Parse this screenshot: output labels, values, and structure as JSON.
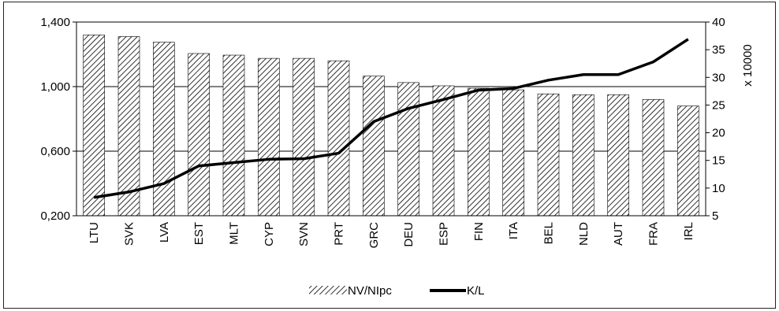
{
  "chart_data": {
    "type": "bar",
    "categories": [
      "LTU",
      "SVK",
      "LVA",
      "EST",
      "MLT",
      "CYP",
      "SVN",
      "PRT",
      "GRC",
      "DEU",
      "ESP",
      "FIN",
      "ITA",
      "BEL",
      "NLD",
      "AUT",
      "FRA",
      "IRL"
    ],
    "series": [
      {
        "name": "NV/NIpc",
        "type": "bar",
        "axis": "left",
        "pattern": "diagonal-hatch",
        "values": [
          1.32,
          1.31,
          1.275,
          1.205,
          1.195,
          1.175,
          1.175,
          1.16,
          1.065,
          1.025,
          1.005,
          0.99,
          0.98,
          0.955,
          0.95,
          0.95,
          0.92,
          0.88
        ]
      },
      {
        "name": "K/L",
        "type": "line",
        "axis": "right",
        "color": "#000000",
        "values": [
          8.3,
          9.3,
          10.8,
          14.0,
          14.6,
          15.2,
          15.3,
          16.3,
          22.0,
          24.4,
          26.0,
          27.7,
          28.0,
          29.5,
          30.5,
          30.5,
          32.8,
          36.9
        ]
      }
    ],
    "left_axis": {
      "ylim": [
        0.2,
        1.4
      ],
      "ticks": [
        0.2,
        0.6,
        1.0,
        1.4
      ],
      "tick_labels": [
        "0,200",
        "0,600",
        "1,000",
        "1,400"
      ]
    },
    "right_axis": {
      "ylim": [
        5,
        40
      ],
      "ticks": [
        5,
        10,
        15,
        20,
        25,
        30,
        35,
        40
      ],
      "tick_labels": [
        "5",
        "10",
        "15",
        "20",
        "25",
        "30",
        "35",
        "40"
      ],
      "unit_label": "x 10000"
    },
    "grid": true,
    "legend_position": "bottom-center",
    "legend": [
      {
        "label": "NV/NIpc",
        "swatch": "hatch"
      },
      {
        "label": "K/L",
        "swatch": "line"
      }
    ]
  }
}
